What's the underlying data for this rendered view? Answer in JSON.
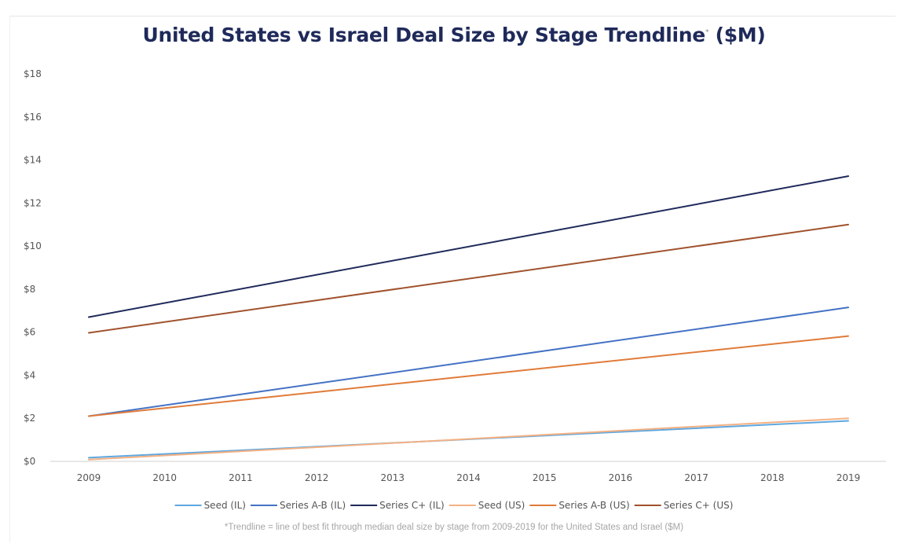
{
  "chart_data": {
    "type": "line",
    "title": "United States vs Israel Deal Size by Stage Trendline",
    "title_mark": "*",
    "title_unit": "($M)",
    "x": [
      "2009",
      "2010",
      "2011",
      "2012",
      "2013",
      "2014",
      "2015",
      "2016",
      "2017",
      "2018",
      "2019"
    ],
    "ylim": [
      0,
      18
    ],
    "yticks": [
      "$0",
      "$2",
      "$4",
      "$6",
      "$8",
      "$10",
      "$12",
      "$14",
      "$16",
      "$18"
    ],
    "ytick_values": [
      0,
      2,
      4,
      6,
      8,
      10,
      12,
      14,
      16,
      18
    ],
    "grid": false,
    "legend_position": "bottom",
    "series": [
      {
        "name": "Seed (IL)",
        "color": "#5fa8e0",
        "start": 0.17,
        "end": 1.88
      },
      {
        "name": "Series A-B (IL)",
        "color": "#4472c4",
        "start": 2.1,
        "end": 7.15
      },
      {
        "name": "Series C+ (IL)",
        "color": "#1f2a5a",
        "start": 6.7,
        "end": 13.25
      },
      {
        "name": "Seed (US)",
        "color": "#f4b183",
        "start": 0.08,
        "end": 2.0
      },
      {
        "name": "Series A-B (US)",
        "color": "#e07b39",
        "start": 2.1,
        "end": 5.82
      },
      {
        "name": "Series C+ (US)",
        "color": "#a0522d",
        "start": 5.97,
        "end": 11.0
      }
    ],
    "footnote": "*Trendline = line of best fit through median deal size by stage from 2009-2019 for the United States and Israel ($M)"
  }
}
